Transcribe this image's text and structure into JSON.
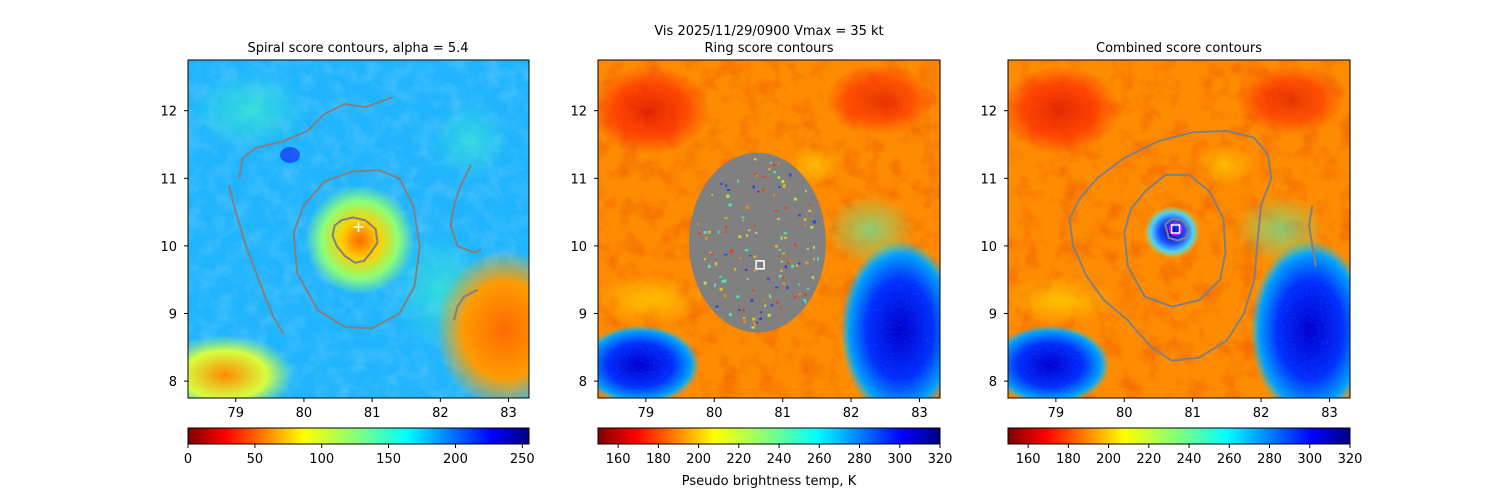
{
  "figure": {
    "suptitle_line1": "Vis  2025/11/29/0900    Vmax = 35 kt",
    "colorbar_label": "Pseudo brightness temp, K"
  },
  "panels": [
    {
      "title": "Spiral score contours, alpha =  5.4",
      "marker": "+"
    },
    {
      "title": "Ring score contours",
      "marker": "square"
    },
    {
      "title": "Combined score contours",
      "marker": "square"
    }
  ],
  "colors": {
    "contour": "#808080",
    "marker": "#ffffff",
    "ring_fill": "#808080",
    "inner_marker": "#ff00ff"
  },
  "chart_data": [
    {
      "type": "heatmap",
      "title": "Spiral score contours, alpha =  5.4",
      "colormap": "jet_r",
      "x_ticks": [
        79,
        80,
        81,
        82,
        83
      ],
      "y_ticks": [
        8,
        9,
        10,
        11,
        12
      ],
      "xlim": [
        78.3,
        83.3
      ],
      "ylim": [
        7.75,
        12.75
      ],
      "colorbar": {
        "ticks": [
          0,
          50,
          100,
          150,
          200,
          250
        ],
        "range": [
          0,
          255
        ]
      },
      "center_marker": {
        "x": 80.8,
        "y": 10.28,
        "symbol": "+"
      },
      "contours": [
        {
          "level": "inner",
          "points": [
            [
              80.45,
              10.3
            ],
            [
              80.55,
              10.38
            ],
            [
              80.72,
              10.42
            ],
            [
              80.9,
              10.38
            ],
            [
              81.05,
              10.25
            ],
            [
              81.08,
              10.05
            ],
            [
              80.98,
              9.9
            ],
            [
              80.88,
              9.78
            ],
            [
              80.75,
              9.75
            ],
            [
              80.6,
              9.85
            ],
            [
              80.48,
              10.0
            ],
            [
              80.42,
              10.15
            ],
            [
              80.45,
              10.3
            ]
          ]
        },
        {
          "level": "middle",
          "points": [
            [
              80.0,
              10.6
            ],
            [
              80.3,
              10.95
            ],
            [
              80.7,
              11.1
            ],
            [
              81.1,
              11.12
            ],
            [
              81.4,
              11.0
            ],
            [
              81.6,
              10.6
            ],
            [
              81.7,
              10.0
            ],
            [
              81.62,
              9.4
            ],
            [
              81.4,
              9.0
            ],
            [
              81.0,
              8.78
            ],
            [
              80.6,
              8.8
            ],
            [
              80.2,
              9.05
            ],
            [
              79.9,
              9.6
            ],
            [
              79.85,
              10.2
            ],
            [
              80.0,
              10.6
            ]
          ]
        },
        {
          "level": "outer",
          "points": [
            [
              81.3,
              12.2
            ],
            [
              80.9,
              12.05
            ],
            [
              80.6,
              12.1
            ],
            [
              80.3,
              11.95
            ],
            [
              80.05,
              11.7
            ],
            [
              79.7,
              11.55
            ],
            [
              79.3,
              11.45
            ],
            [
              79.1,
              11.3
            ],
            [
              79.05,
              11.0
            ]
          ]
        },
        {
          "level": "outer",
          "points": [
            [
              78.9,
              10.9
            ],
            [
              79.0,
              10.5
            ],
            [
              79.15,
              10.0
            ],
            [
              79.3,
              9.6
            ],
            [
              79.45,
              9.2
            ],
            [
              79.55,
              8.95
            ],
            [
              79.7,
              8.7
            ]
          ]
        },
        {
          "level": "outer",
          "points": [
            [
              82.45,
              11.2
            ],
            [
              82.3,
              10.9
            ],
            [
              82.2,
              10.6
            ],
            [
              82.15,
              10.3
            ],
            [
              82.25,
              10.0
            ],
            [
              82.5,
              9.9
            ],
            [
              82.6,
              9.95
            ]
          ]
        },
        {
          "level": "outer",
          "points": [
            [
              82.55,
              9.35
            ],
            [
              82.35,
              9.25
            ],
            [
              82.25,
              9.1
            ],
            [
              82.2,
              8.9
            ]
          ]
        }
      ]
    },
    {
      "type": "heatmap",
      "title": "Ring score contours",
      "colormap": "jet_r",
      "x_ticks": [
        79,
        80,
        81,
        82,
        83
      ],
      "y_ticks": [
        8,
        9,
        10,
        11,
        12
      ],
      "xlim": [
        78.3,
        83.3
      ],
      "ylim": [
        7.75,
        12.75
      ],
      "colorbar": {
        "ticks": [
          160,
          180,
          200,
          220,
          240,
          260,
          280,
          300,
          320
        ],
        "range": [
          150,
          320
        ]
      },
      "center_marker": {
        "x": 80.67,
        "y": 9.72,
        "symbol": "square"
      },
      "ring_region": {
        "cx": 80.63,
        "cy": 10.05,
        "rx": 1.0,
        "ry": 1.33
      }
    },
    {
      "type": "heatmap",
      "title": "Combined score contours",
      "colormap": "jet_r",
      "x_ticks": [
        79,
        80,
        81,
        82,
        83
      ],
      "y_ticks": [
        8,
        9,
        10,
        11,
        12
      ],
      "xlim": [
        78.3,
        83.3
      ],
      "ylim": [
        7.75,
        12.75
      ],
      "colorbar": {
        "ticks": [
          160,
          180,
          200,
          220,
          240,
          260,
          280,
          300,
          320
        ],
        "range": [
          150,
          320
        ]
      },
      "center_marker": {
        "x": 80.75,
        "y": 10.25,
        "symbol": "square"
      },
      "contours": [
        {
          "level": "inner",
          "points": [
            [
              80.6,
              10.32
            ],
            [
              80.7,
              10.4
            ],
            [
              80.85,
              10.38
            ],
            [
              80.95,
              10.25
            ],
            [
              80.9,
              10.12
            ],
            [
              80.78,
              10.08
            ],
            [
              80.65,
              10.12
            ],
            [
              80.6,
              10.32
            ]
          ]
        },
        {
          "level": "middle",
          "points": [
            [
              80.3,
              10.8
            ],
            [
              80.6,
              11.05
            ],
            [
              80.95,
              11.05
            ],
            [
              81.25,
              10.8
            ],
            [
              81.45,
              10.4
            ],
            [
              81.48,
              9.9
            ],
            [
              81.4,
              9.5
            ],
            [
              81.1,
              9.2
            ],
            [
              80.7,
              9.1
            ],
            [
              80.3,
              9.25
            ],
            [
              80.05,
              9.7
            ],
            [
              80.0,
              10.2
            ],
            [
              80.1,
              10.55
            ],
            [
              80.3,
              10.8
            ]
          ]
        },
        {
          "level": "outer",
          "points": [
            [
              79.6,
              11.0
            ],
            [
              80.0,
              11.3
            ],
            [
              80.5,
              11.55
            ],
            [
              81.0,
              11.68
            ],
            [
              81.5,
              11.7
            ],
            [
              81.9,
              11.6
            ],
            [
              82.1,
              11.35
            ],
            [
              82.15,
              11.0
            ],
            [
              82.0,
              10.6
            ],
            [
              81.95,
              10.1
            ],
            [
              81.9,
              9.5
            ],
            [
              81.75,
              9.0
            ],
            [
              81.5,
              8.6
            ],
            [
              81.1,
              8.35
            ],
            [
              80.7,
              8.3
            ]
          ]
        },
        {
          "level": "outer",
          "points": [
            [
              79.6,
              11.0
            ],
            [
              79.35,
              10.7
            ],
            [
              79.2,
              10.4
            ],
            [
              79.25,
              10.0
            ],
            [
              79.45,
              9.55
            ],
            [
              79.7,
              9.2
            ],
            [
              80.05,
              8.9
            ],
            [
              80.4,
              8.5
            ],
            [
              80.7,
              8.3
            ]
          ]
        },
        {
          "level": "outer",
          "points": [
            [
              82.75,
              10.6
            ],
            [
              82.7,
              10.3
            ],
            [
              82.75,
              10.0
            ],
            [
              82.8,
              9.7
            ]
          ]
        }
      ]
    }
  ]
}
